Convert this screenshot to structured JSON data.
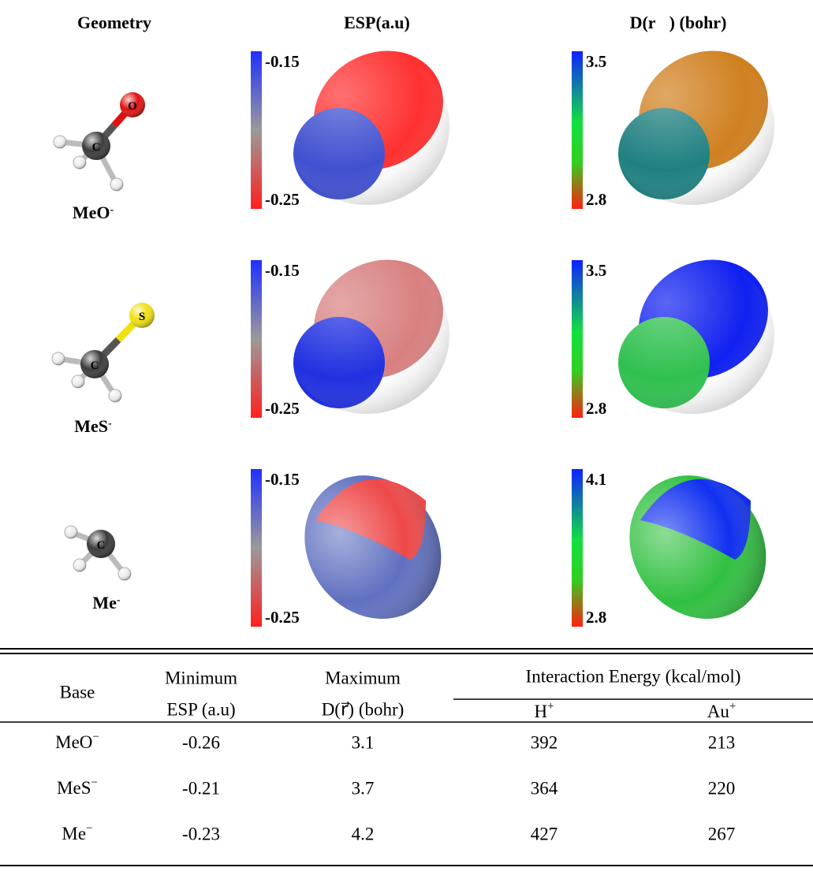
{
  "figure": {
    "headers": [
      "Geometry",
      "ESP(a.u)",
      "D(r⃗) (bohr)"
    ],
    "rows": [
      {
        "name": {
          "text": "MeO",
          "sup": "-"
        },
        "center_atom": "C",
        "atom": "O",
        "esp_top": "-0.15",
        "esp_bottom": "-0.25",
        "d_top": "3.5",
        "d_bottom": "2.8"
      },
      {
        "name": {
          "text": "MeS",
          "sup": "-"
        },
        "center_atom": "C",
        "atom": "S",
        "esp_top": "-0.15",
        "esp_bottom": "-0.25",
        "d_top": "3.5",
        "d_bottom": "2.8"
      },
      {
        "name": {
          "text": "Me",
          "sup": "-"
        },
        "center_atom": "C",
        "esp_top": "-0.15",
        "esp_bottom": "-0.25",
        "d_top": "4.1",
        "d_bottom": "2.8"
      }
    ]
  },
  "table": {
    "header": {
      "base": "Base",
      "min_esp": [
        "Minimum",
        "ESP (a.u)"
      ],
      "max_d": [
        "Maximum",
        "D(r⃗) (bohr)"
      ],
      "energy": "Interaction Energy (kcal/mol)",
      "h": {
        "text": "H",
        "sup": "+"
      },
      "au": {
        "text": "Au",
        "sup": "+"
      }
    },
    "rows": [
      [
        {
          "text": "MeO",
          "sup": "−"
        },
        "-0.26",
        "3.1",
        "392",
        "213"
      ],
      [
        {
          "text": "MeS",
          "sup": "−"
        },
        "-0.21",
        "3.7",
        "364",
        "220"
      ],
      [
        {
          "text": "Me",
          "sup": "−"
        },
        "-0.23",
        "4.2",
        "427",
        "267"
      ]
    ]
  }
}
